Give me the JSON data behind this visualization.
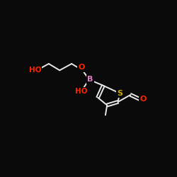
{
  "background_color": "#0a0a0a",
  "bond_color": "#e8e8e8",
  "atom_colors": {
    "O": "#ff2200",
    "B": "#e080c0",
    "S": "#ccaa00",
    "C": "#e8e8e8",
    "H": "#e8e8e8"
  },
  "bond_width": 1.4,
  "figsize": [
    2.5,
    2.5
  ],
  "dpi": 100,
  "xlim": [
    0,
    250
  ],
  "ylim": [
    0,
    250
  ]
}
